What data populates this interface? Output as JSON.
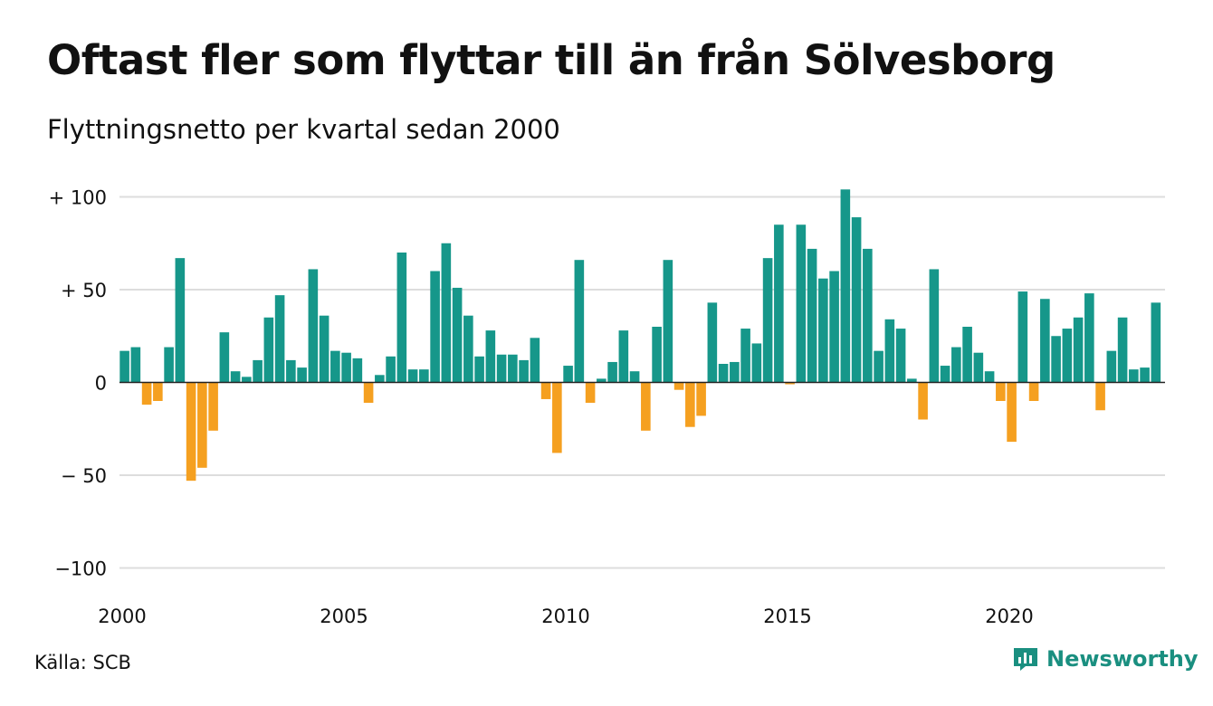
{
  "header": {
    "title": "Oftast fler som flyttar till än från Sölvesborg",
    "subtitle": "Flyttningsnetto per kvartal sedan 2000"
  },
  "footer": {
    "source": "Källa: SCB",
    "brand_name": "Newsworthy",
    "brand_icon": "chart-bubble-icon"
  },
  "colors": {
    "positive": "#16978a",
    "negative": "#f5a020",
    "grid": "#dddddd",
    "brand": "#1a8f80"
  },
  "chart_data": {
    "type": "bar",
    "title": "Oftast fler som flyttar till än från Sölvesborg",
    "subtitle": "Flyttningsnetto per kvartal sedan 2000",
    "xlabel": "",
    "ylabel": "",
    "x_start": "2000 Q1",
    "frequency": "quarterly",
    "ylim": [
      -100,
      100
    ],
    "y_ticks": [
      {
        "value": 100,
        "label": "+ 100"
      },
      {
        "value": 50,
        "label": "+  50"
      },
      {
        "value": 0,
        "label": "0"
      },
      {
        "value": -50,
        "label": "− 50"
      },
      {
        "value": -100,
        "label": "−100"
      }
    ],
    "x_ticks": [
      {
        "index": 0,
        "label": "2000"
      },
      {
        "index": 20,
        "label": "2005"
      },
      {
        "index": 40,
        "label": "2010"
      },
      {
        "index": 60,
        "label": "2015"
      },
      {
        "index": 80,
        "label": "2020"
      }
    ],
    "grid": true,
    "legend": "none",
    "values": [
      17,
      19,
      -12,
      -10,
      19,
      67,
      -53,
      -46,
      -26,
      27,
      6,
      3,
      12,
      35,
      47,
      12,
      8,
      61,
      36,
      17,
      16,
      13,
      -11,
      4,
      14,
      70,
      7,
      7,
      60,
      75,
      51,
      36,
      14,
      28,
      15,
      15,
      12,
      24,
      -9,
      -38,
      9,
      66,
      -11,
      2,
      11,
      28,
      6,
      -26,
      30,
      66,
      -4,
      -24,
      -18,
      43,
      10,
      11,
      29,
      21,
      67,
      85,
      -1,
      85,
      72,
      56,
      60,
      104,
      89,
      72,
      17,
      34,
      29,
      2,
      -20,
      61,
      9,
      19,
      30,
      16,
      6,
      -10,
      -32,
      49,
      -10,
      45,
      25,
      29,
      35,
      48,
      -15,
      17,
      35,
      7,
      8,
      43
    ]
  }
}
